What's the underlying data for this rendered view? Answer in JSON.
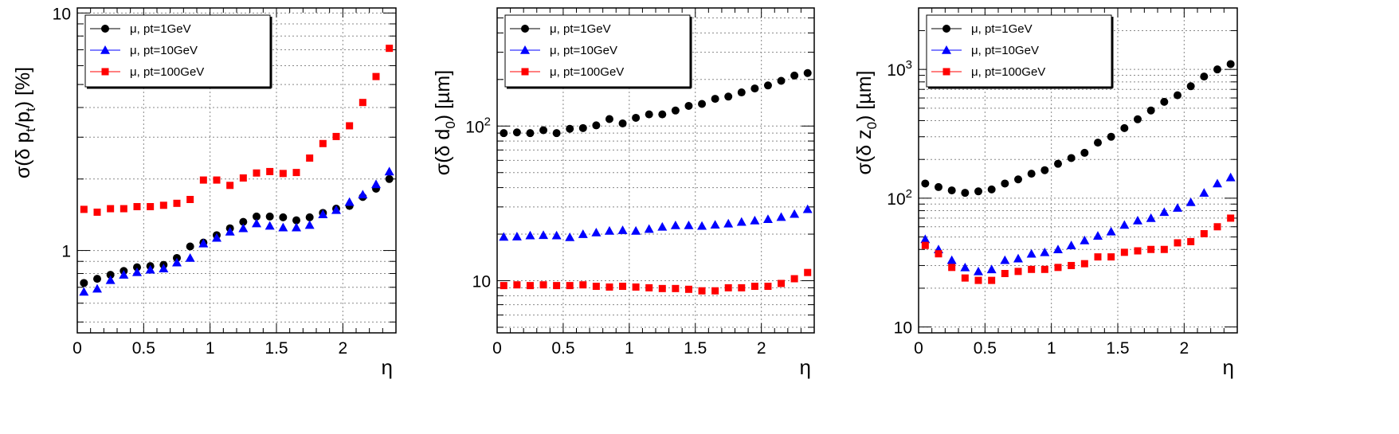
{
  "charts": [
    {
      "type": "scatter",
      "y_scale": "log",
      "ylim": [
        0.45,
        10.5
      ],
      "xlim": [
        0,
        2.4
      ],
      "xlabel": "η",
      "ylabel_parts": [
        "σ(δ p",
        "t",
        "/p",
        "t",
        ") [%]"
      ],
      "x_ticks": [
        "0",
        "0.5",
        "1",
        "1.5",
        "2"
      ],
      "y_ticks": [
        {
          "value": 1,
          "label": "1"
        },
        {
          "value": 10,
          "label": "10"
        }
      ],
      "legend_position": "top-left",
      "grid": true,
      "x": [
        0.05,
        0.15,
        0.25,
        0.35,
        0.45,
        0.55,
        0.65,
        0.75,
        0.85,
        0.95,
        1.05,
        1.15,
        1.25,
        1.35,
        1.45,
        1.55,
        1.65,
        1.75,
        1.85,
        1.95,
        2.05,
        2.15,
        2.25,
        2.35
      ],
      "series": [
        {
          "name": "μ, pt=1GeV",
          "color": "#000000",
          "marker": "circle",
          "values": [
            0.73,
            0.76,
            0.79,
            0.82,
            0.85,
            0.86,
            0.87,
            0.93,
            1.04,
            1.08,
            1.16,
            1.24,
            1.32,
            1.39,
            1.39,
            1.38,
            1.34,
            1.38,
            1.44,
            1.5,
            1.54,
            1.68,
            1.82,
            2.0
          ]
        },
        {
          "name": "μ, pt=10GeV",
          "color": "#0000ff",
          "marker": "triangle",
          "values": [
            0.67,
            0.69,
            0.75,
            0.79,
            0.81,
            0.83,
            0.84,
            0.89,
            0.93,
            1.07,
            1.13,
            1.2,
            1.24,
            1.3,
            1.27,
            1.25,
            1.25,
            1.28,
            1.42,
            1.48,
            1.6,
            1.72,
            1.9,
            2.15
          ]
        },
        {
          "name": "μ, pt=100GeV",
          "color": "#ff0000",
          "marker": "square",
          "values": [
            1.49,
            1.45,
            1.5,
            1.5,
            1.53,
            1.53,
            1.55,
            1.58,
            1.64,
            1.98,
            1.98,
            1.88,
            2.02,
            2.12,
            2.15,
            2.11,
            2.13,
            2.45,
            2.82,
            3.02,
            3.35,
            4.2,
            5.4,
            7.1
          ]
        }
      ]
    },
    {
      "type": "scatter",
      "y_scale": "log",
      "ylim": [
        4.6,
        580
      ],
      "xlim": [
        0,
        2.4
      ],
      "xlabel": "η",
      "ylabel_parts": [
        "σ(δ d",
        "0",
        ") [µm]"
      ],
      "x_ticks": [
        "0",
        "0.5",
        "1",
        "1.5",
        "2"
      ],
      "y_ticks": [
        {
          "value": 10,
          "label": "10"
        },
        {
          "value": 100,
          "label": "10",
          "sup": "2"
        }
      ],
      "legend_position": "top-left",
      "grid": true,
      "x": [
        0.05,
        0.15,
        0.25,
        0.35,
        0.45,
        0.55,
        0.65,
        0.75,
        0.85,
        0.95,
        1.05,
        1.15,
        1.25,
        1.35,
        1.45,
        1.55,
        1.65,
        1.75,
        1.85,
        1.95,
        2.05,
        2.15,
        2.25,
        2.35
      ],
      "series": [
        {
          "name": "μ, pt=1GeV",
          "color": "#000000",
          "marker": "circle",
          "values": [
            90,
            91,
            90,
            94,
            90,
            96,
            97,
            101,
            111,
            104,
            113,
            119,
            119,
            126,
            135,
            139,
            150,
            155,
            165,
            175,
            183,
            196,
            212,
            220
          ]
        },
        {
          "name": "μ, pt=10GeV",
          "color": "#0000ff",
          "marker": "triangle",
          "values": [
            19.2,
            19.3,
            19.6,
            19.7,
            19.6,
            19.1,
            20.0,
            20.5,
            21.0,
            21.2,
            21.0,
            21.6,
            22.3,
            22.8,
            22.8,
            22.6,
            23.0,
            23.4,
            24.0,
            24.5,
            25.0,
            25.8,
            27.0,
            29.0
          ]
        },
        {
          "name": "μ, pt=100GeV",
          "color": "#ff0000",
          "marker": "square",
          "values": [
            9.3,
            9.4,
            9.3,
            9.4,
            9.3,
            9.3,
            9.4,
            9.2,
            9.1,
            9.2,
            9.1,
            9.0,
            8.9,
            8.9,
            8.8,
            8.6,
            8.6,
            9.0,
            9.0,
            9.2,
            9.2,
            9.6,
            10.3,
            11.3
          ]
        }
      ]
    },
    {
      "type": "scatter",
      "y_scale": "log",
      "ylim": [
        9.0,
        3000
      ],
      "xlim": [
        0,
        2.4
      ],
      "xlabel": "η",
      "ylabel_parts": [
        "σ(δ z",
        "0",
        ") [µm]"
      ],
      "x_ticks": [
        "0",
        "0.5",
        "1",
        "1.5",
        "2"
      ],
      "y_ticks": [
        {
          "value": 10,
          "label": "10"
        },
        {
          "value": 100,
          "label": "10",
          "sup": "2"
        },
        {
          "value": 1000,
          "label": "10",
          "sup": "3"
        }
      ],
      "legend_position": "top-left",
      "grid": true,
      "x": [
        0.05,
        0.15,
        0.25,
        0.35,
        0.45,
        0.55,
        0.65,
        0.75,
        0.85,
        0.95,
        1.05,
        1.15,
        1.25,
        1.35,
        1.45,
        1.55,
        1.65,
        1.75,
        1.85,
        1.95,
        2.05,
        2.15,
        2.25,
        2.35
      ],
      "series": [
        {
          "name": "μ, pt=1GeV",
          "color": "#000000",
          "marker": "circle",
          "values": [
            130,
            122,
            115,
            110,
            113,
            117,
            130,
            140,
            155,
            165,
            185,
            205,
            225,
            270,
            300,
            350,
            410,
            480,
            560,
            630,
            740,
            880,
            1000,
            1100
          ]
        },
        {
          "name": "μ, pt=10GeV",
          "color": "#0000ff",
          "marker": "triangle",
          "values": [
            48,
            40,
            33,
            29,
            27,
            28,
            33,
            34,
            37,
            38,
            40,
            43,
            47,
            51,
            55,
            62,
            67,
            70,
            78,
            84,
            93,
            110,
            130,
            145
          ]
        },
        {
          "name": "μ, pt=100GeV",
          "color": "#ff0000",
          "marker": "square",
          "values": [
            43,
            37,
            29,
            24,
            23,
            23,
            26,
            27,
            28,
            28,
            29,
            30,
            31,
            35,
            35,
            38,
            39,
            40,
            40,
            45,
            46,
            53,
            60,
            70
          ]
        }
      ]
    }
  ]
}
